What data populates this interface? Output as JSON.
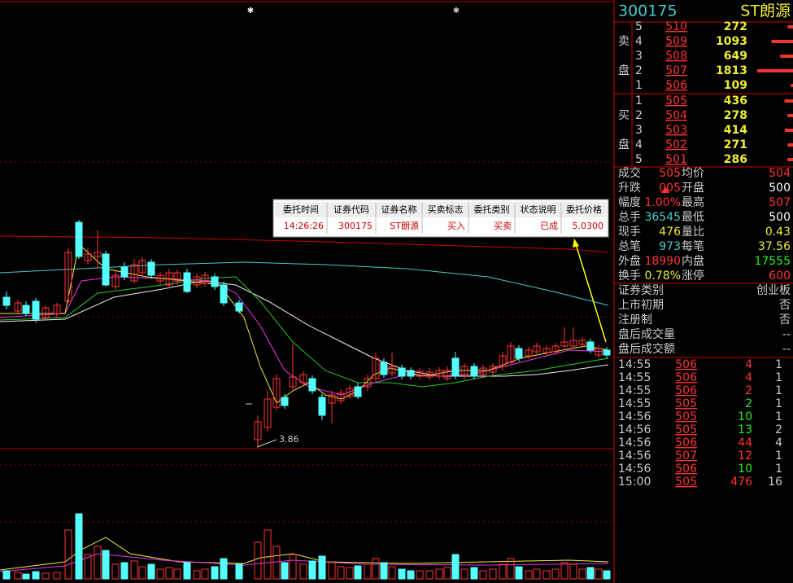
{
  "header": {
    "code": "300175",
    "name": "ST朗源"
  },
  "order_book": {
    "sell_label": [
      "卖",
      "盘"
    ],
    "buy_label": [
      "买",
      "盘"
    ],
    "sell": [
      {
        "level": 5,
        "price": 510,
        "volume": 272
      },
      {
        "level": 4,
        "price": 509,
        "volume": 1093
      },
      {
        "level": 3,
        "price": 508,
        "volume": 649
      },
      {
        "level": 2,
        "price": 507,
        "volume": 1813
      },
      {
        "level": 1,
        "price": 506,
        "volume": 109
      }
    ],
    "buy": [
      {
        "level": 1,
        "price": 505,
        "volume": 436
      },
      {
        "level": 2,
        "price": 504,
        "volume": 278
      },
      {
        "level": 3,
        "price": 503,
        "volume": 414
      },
      {
        "level": 4,
        "price": 502,
        "volume": 271
      },
      {
        "level": 5,
        "price": 501,
        "volume": 286
      }
    ]
  },
  "stats": [
    {
      "label": "成交",
      "value": "505",
      "label2": "均价",
      "value2": "504"
    },
    {
      "label": "升跌",
      "value": "005",
      "label2": "开盘",
      "value2": "500"
    },
    {
      "label": "幅度",
      "value": "1.00%",
      "label2": "最高",
      "value2": "507"
    },
    {
      "label": "总手",
      "value": "36545",
      "label2": "最低",
      "value2": "500"
    },
    {
      "label": "现手",
      "value": "476",
      "label2": "量比",
      "value2": "0.43"
    },
    {
      "label": "总笔",
      "value": "973",
      "label2": "每笔",
      "value2": "37.56"
    },
    {
      "label": "外盘",
      "value": "18990",
      "label2": "内盘",
      "value2": "17555"
    },
    {
      "label": "换手",
      "value": "0.78%",
      "label2": "涨停",
      "value2": "600"
    }
  ],
  "info": [
    {
      "label": "证券类别",
      "value": "创业板"
    },
    {
      "label": "上市初期",
      "value": "否"
    },
    {
      "label": "注册制",
      "value": "否"
    },
    {
      "label": "盘后成交量",
      "value": "--"
    },
    {
      "label": "盘后成交额",
      "value": "--"
    }
  ],
  "ticks": [
    {
      "time": "14:55",
      "price": 506,
      "volume": 4,
      "count": 1
    },
    {
      "time": "14:55",
      "price": 506,
      "volume": 4,
      "count": 1
    },
    {
      "time": "14:55",
      "price": 506,
      "volume": 2,
      "count": 1
    },
    {
      "time": "14:55",
      "price": 505,
      "volume": 2,
      "count": 1
    },
    {
      "time": "14:56",
      "price": 505,
      "volume": 10,
      "count": 1
    },
    {
      "time": "14:56",
      "price": 505,
      "volume": 13,
      "count": 2
    },
    {
      "time": "14:56",
      "price": 506,
      "volume": 44,
      "count": 4
    },
    {
      "time": "14:56",
      "price": 507,
      "volume": 12,
      "count": 1
    },
    {
      "time": "14:56",
      "price": 506,
      "volume": 10,
      "count": 1
    },
    {
      "time": "15:00",
      "price": 505,
      "volume": 476,
      "count": 16
    }
  ],
  "order_popup": {
    "headers": [
      "委托时间",
      "证券代码",
      "证券名称",
      "买卖标志",
      "委托类别",
      "状态说明",
      "委托价格"
    ],
    "row": [
      "14:26:26",
      "300175",
      "ST朗源",
      "买入",
      "买卖",
      "已成",
      "5.0300"
    ]
  },
  "chart": {
    "low_label": "3.86"
  }
}
